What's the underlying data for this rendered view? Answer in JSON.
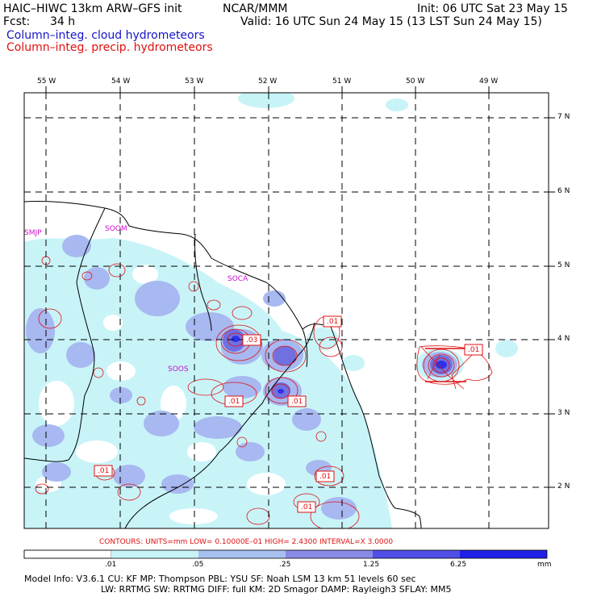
{
  "header": {
    "model": "HAIC–HIWC 13km ARW–GFS init",
    "org": "NCAR/MMM",
    "init": "Init: 06 UTC Sat 23 May 15",
    "fcst_label": "Fcst:",
    "fcst_value": "34 h",
    "valid": "Valid: 16 UTC Sun 24 May 15 (13 LST Sun 24 May 15)",
    "field1": "Column–integ. cloud hydrometeors",
    "field2": "Column–integ. precip. hydrometeors"
  },
  "map": {
    "lon_labels": [
      "55 W",
      "54 W",
      "53 W",
      "52 W",
      "51 W",
      "50 W",
      "49 W"
    ],
    "lat_labels": [
      "7 N",
      "6 N",
      "5 N",
      "4 N",
      "3 N",
      "2 N"
    ],
    "stations": [
      "SMJP",
      "SOOM",
      "SOCA",
      "SOOS"
    ],
    "contour_labels": [
      ".03",
      ".01",
      ".01",
      ".01",
      ".01",
      ".01",
      ".01",
      ".01"
    ]
  },
  "contour_info": "CONTOURS:  UNITS=mm   LOW= 0.10000E–01   HIGH=   2.4300       INTERVAL=X  3.0000",
  "colorbar": {
    "ticks": [
      ".01",
      ".05",
      ".25",
      "1.25",
      "6.25"
    ],
    "units": "mm",
    "colors": [
      "#ffffff",
      "#c8f4f8",
      "#a8c0f0",
      "#8a8ae8",
      "#5050e8",
      "#2020e8"
    ]
  },
  "footer": {
    "line1": "Model Info: V3.6.1     CU: KF       MP: Thompson     PBL: YSU       SF: Noah LSM      13 km    51 levels    60 sec",
    "line2": "LW: RRTMG    SW: RRTMG   DIFF: full     KM: 2D Smagor  DAMP: Rayleigh3    SFLAY: MM5"
  }
}
